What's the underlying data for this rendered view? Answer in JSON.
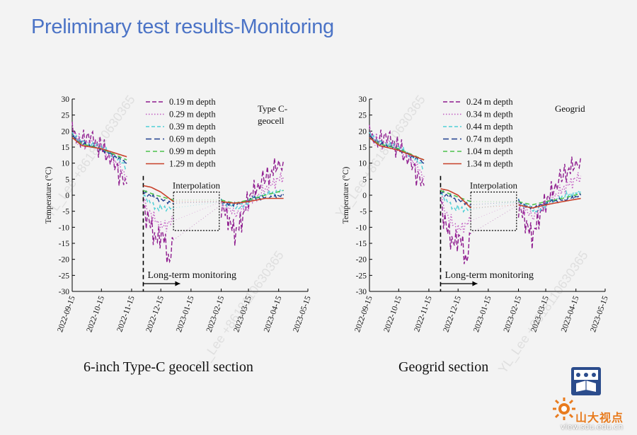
{
  "slide": {
    "title": "Preliminary test results-Monitoring",
    "watermark": "YL_Lee +8618110630365",
    "brand": "山大视点",
    "brand_url": "view.sdu.edu.cn"
  },
  "chart_data": [
    {
      "type": "line",
      "caption": "6-inch Type-C geocell section",
      "annotation": "Type C-\ngeocell",
      "ylabel": "Temperature (°C)",
      "ylim": [
        -30,
        30
      ],
      "yticks": [
        -30,
        -25,
        -20,
        -15,
        -10,
        -5,
        0,
        5,
        10,
        15,
        20,
        25,
        30
      ],
      "xticks": [
        "2022-09-15",
        "2022-10-15",
        "2022-11-15",
        "2022-12-15",
        "2023-01-15",
        "2023-02-15",
        "2023-03-15",
        "2023-04-15",
        "2023-05-15"
      ],
      "xlim": [
        "2022-09-15",
        "2023-05-15"
      ],
      "interpolation_label": "Interpolation",
      "monitoring_label": "Long-term monitoring",
      "monitoring_start": "2022-11-27",
      "interpolation_window": {
        "x": [
          "2022-12-28",
          "2023-02-13"
        ],
        "y": [
          -11,
          1
        ]
      },
      "series": [
        {
          "name": "0.19 m depth",
          "color": "#8e1b8e",
          "dash": "6,3",
          "width": 1.4,
          "amp": 4.5,
          "points": [
            [
              "2022-09-15",
              21
            ],
            [
              "2022-09-22",
              16
            ],
            [
              "2022-09-30",
              19
            ],
            [
              "2022-10-15",
              15
            ],
            [
              "2022-10-30",
              9
            ],
            [
              "2022-11-10",
              3.5
            ],
            null,
            [
              "2022-11-27",
              -4
            ],
            [
              "2022-12-03",
              -8
            ],
            [
              "2022-12-10",
              -14
            ],
            [
              "2022-12-17",
              -12
            ],
            [
              "2022-12-24",
              -21
            ],
            [
              "2022-12-28",
              -14
            ],
            null,
            [
              "2023-02-15",
              -3
            ],
            [
              "2023-02-22",
              -7
            ],
            [
              "2023-03-01",
              -12
            ],
            [
              "2023-03-08",
              -8
            ],
            [
              "2023-03-15",
              -1
            ],
            [
              "2023-03-25",
              3
            ],
            [
              "2023-04-05",
              6
            ],
            [
              "2023-04-15",
              10
            ],
            [
              "2023-04-20",
              11
            ]
          ]
        },
        {
          "name": "0.29 m depth",
          "color": "#c25cc2",
          "dash": "1.5,2.5",
          "width": 1.4,
          "amp": 2.5,
          "points": [
            [
              "2022-09-15",
              20
            ],
            [
              "2022-09-25",
              16.5
            ],
            [
              "2022-10-10",
              16
            ],
            [
              "2022-10-25",
              12
            ],
            [
              "2022-11-10",
              6
            ],
            null,
            [
              "2022-11-27",
              -2
            ],
            [
              "2022-12-05",
              -6
            ],
            [
              "2022-12-15",
              -10
            ],
            [
              "2022-12-28",
              -8
            ],
            null,
            [
              "2023-02-15",
              -2
            ],
            [
              "2023-03-01",
              -6
            ],
            [
              "2023-03-10",
              -4
            ],
            [
              "2023-03-25",
              0
            ],
            [
              "2023-04-10",
              4
            ],
            [
              "2023-04-20",
              6
            ]
          ]
        },
        {
          "name": "0.39 m depth",
          "color": "#4fd0d6",
          "dash": "5,3",
          "width": 1.4,
          "amp": 1.2,
          "points": [
            [
              "2022-09-15",
              19
            ],
            [
              "2022-09-25",
              16.5
            ],
            [
              "2022-10-15",
              15
            ],
            [
              "2022-11-10",
              9
            ],
            null,
            [
              "2022-11-27",
              0
            ],
            [
              "2022-12-10",
              -4
            ],
            [
              "2022-12-28",
              -4
            ],
            null,
            [
              "2023-02-15",
              -2
            ],
            [
              "2023-03-05",
              -4
            ],
            [
              "2023-03-20",
              -1
            ],
            [
              "2023-04-05",
              0.5
            ],
            [
              "2023-04-20",
              1.5
            ]
          ]
        },
        {
          "name": "0.69 m depth",
          "color": "#1f3f8f",
          "dash": "8,4",
          "width": 1.4,
          "amp": 0.8,
          "points": [
            [
              "2022-09-15",
              18.5
            ],
            [
              "2022-09-25",
              16
            ],
            [
              "2022-10-15",
              14.5
            ],
            [
              "2022-11-10",
              10
            ],
            null,
            [
              "2022-11-27",
              1
            ],
            [
              "2022-12-10",
              -1
            ],
            [
              "2022-12-28",
              -2.5
            ],
            null,
            [
              "2023-02-15",
              -2
            ],
            [
              "2023-03-01",
              -3
            ],
            [
              "2023-03-20",
              -1
            ],
            [
              "2023-04-10",
              -0.5
            ],
            [
              "2023-04-20",
              0
            ]
          ]
        },
        {
          "name": "0.99 m depth",
          "color": "#4cc24c",
          "dash": "6,4",
          "width": 1.6,
          "amp": 0,
          "points": [
            [
              "2022-09-15",
              18
            ],
            [
              "2022-09-25",
              16
            ],
            [
              "2022-10-15",
              14.5
            ],
            [
              "2022-11-10",
              11
            ],
            null,
            [
              "2022-11-27",
              1.5
            ],
            [
              "2022-12-10",
              0
            ],
            [
              "2022-12-28",
              -1.5
            ],
            null,
            [
              "2023-02-15",
              -1.5
            ],
            [
              "2023-03-01",
              -2.5
            ],
            [
              "2023-03-15",
              -1.5
            ],
            [
              "2023-04-01",
              0
            ],
            [
              "2023-04-20",
              1.5
            ]
          ]
        },
        {
          "name": "1.29 m depth",
          "color": "#c8402a",
          "dash": "",
          "width": 1.6,
          "amp": 0,
          "points": [
            [
              "2022-09-15",
              18
            ],
            [
              "2022-09-25",
              15.5
            ],
            [
              "2022-10-15",
              14.5
            ],
            [
              "2022-11-10",
              12
            ],
            null,
            [
              "2022-11-27",
              3
            ],
            [
              "2022-12-05",
              2.5
            ],
            [
              "2022-12-15",
              1
            ],
            [
              "2022-12-28",
              -2
            ],
            null,
            [
              "2023-02-15",
              -2
            ],
            [
              "2023-03-01",
              -2.5
            ],
            [
              "2023-03-15",
              -2
            ],
            [
              "2023-04-01",
              -1
            ],
            [
              "2023-04-20",
              -1
            ]
          ]
        }
      ]
    },
    {
      "type": "line",
      "caption": "Geogrid section",
      "annotation": "Geogrid",
      "ylabel": "Temperature (°C)",
      "ylim": [
        -30,
        30
      ],
      "yticks": [
        -30,
        -25,
        -20,
        -15,
        -10,
        -5,
        0,
        5,
        10,
        15,
        20,
        25,
        30
      ],
      "xticks": [
        "2022-09-15",
        "2022-10-15",
        "2022-11-15",
        "2022-12-15",
        "2023-01-15",
        "2023-02-15",
        "2023-03-15",
        "2023-04-15",
        "2023-05-15"
      ],
      "xlim": [
        "2022-09-15",
        "2023-05-15"
      ],
      "interpolation_label": "Interpolation",
      "monitoring_label": "Long-term monitoring",
      "monitoring_start": "2022-11-27",
      "interpolation_window": {
        "x": [
          "2022-12-28",
          "2023-02-13"
        ],
        "y": [
          -11,
          1
        ]
      },
      "series": [
        {
          "name": "0.24 m depth",
          "color": "#8e1b8e",
          "dash": "6,3",
          "width": 1.4,
          "amp": 4.5,
          "points": [
            [
              "2022-09-15",
              20
            ],
            [
              "2022-09-22",
              16
            ],
            [
              "2022-09-30",
              19
            ],
            [
              "2022-10-15",
              15
            ],
            [
              "2022-10-30",
              9
            ],
            [
              "2022-11-10",
              3
            ],
            null,
            [
              "2022-11-27",
              -2
            ],
            [
              "2022-12-03",
              -10
            ],
            [
              "2022-12-10",
              -15
            ],
            [
              "2022-12-17",
              -13
            ],
            [
              "2022-12-24",
              -21
            ],
            [
              "2022-12-28",
              -12
            ],
            null,
            [
              "2023-02-15",
              -3
            ],
            [
              "2023-02-22",
              -8
            ],
            [
              "2023-03-01",
              -13
            ],
            [
              "2023-03-08",
              -7
            ],
            [
              "2023-03-15",
              -2
            ],
            [
              "2023-03-25",
              3
            ],
            [
              "2023-04-05",
              7
            ],
            [
              "2023-04-15",
              10
            ],
            [
              "2023-04-20",
              12
            ]
          ]
        },
        {
          "name": "0.34 m depth",
          "color": "#c25cc2",
          "dash": "1.5,2.5",
          "width": 1.4,
          "amp": 2.5,
          "points": [
            [
              "2022-09-15",
              19.5
            ],
            [
              "2022-09-25",
              16.5
            ],
            [
              "2022-10-10",
              16
            ],
            [
              "2022-10-25",
              12
            ],
            [
              "2022-11-10",
              6
            ],
            null,
            [
              "2022-11-27",
              -1
            ],
            [
              "2022-12-05",
              -7
            ],
            [
              "2022-12-15",
              -11
            ],
            [
              "2022-12-28",
              -8
            ],
            null,
            [
              "2023-02-15",
              -2
            ],
            [
              "2023-03-01",
              -7
            ],
            [
              "2023-03-10",
              -4
            ],
            [
              "2023-03-25",
              0
            ],
            [
              "2023-04-10",
              4
            ],
            [
              "2023-04-20",
              6
            ]
          ]
        },
        {
          "name": "0.44 m depth",
          "color": "#4fd0d6",
          "dash": "5,3",
          "width": 1.4,
          "amp": 1.2,
          "points": [
            [
              "2022-09-15",
              19
            ],
            [
              "2022-09-25",
              16.5
            ],
            [
              "2022-10-15",
              15
            ],
            [
              "2022-11-10",
              9
            ],
            null,
            [
              "2022-11-27",
              0.5
            ],
            [
              "2022-12-10",
              -4
            ],
            [
              "2022-12-28",
              -4.5
            ],
            null,
            [
              "2023-02-15",
              -2
            ],
            [
              "2023-03-05",
              -5
            ],
            [
              "2023-03-20",
              -2
            ],
            [
              "2023-04-05",
              0
            ],
            [
              "2023-04-20",
              1
            ]
          ]
        },
        {
          "name": "0.74 m depth",
          "color": "#1f3f8f",
          "dash": "8,4",
          "width": 1.4,
          "amp": 0.8,
          "points": [
            [
              "2022-09-15",
              18.5
            ],
            [
              "2022-09-25",
              16
            ],
            [
              "2022-10-15",
              14.5
            ],
            [
              "2022-11-10",
              10
            ],
            null,
            [
              "2022-11-27",
              1
            ],
            [
              "2022-12-10",
              -1
            ],
            [
              "2022-12-28",
              -3
            ],
            null,
            [
              "2023-02-15",
              -2
            ],
            [
              "2023-03-01",
              -4
            ],
            [
              "2023-03-20",
              -2
            ],
            [
              "2023-04-10",
              -1
            ],
            [
              "2023-04-20",
              0
            ]
          ]
        },
        {
          "name": "1.04 m depth",
          "color": "#4cc24c",
          "dash": "6,4",
          "width": 1.6,
          "amp": 0,
          "points": [
            [
              "2022-09-15",
              18
            ],
            [
              "2022-09-25",
              16
            ],
            [
              "2022-10-15",
              14.5
            ],
            [
              "2022-11-10",
              11
            ],
            null,
            [
              "2022-11-27",
              1.5
            ],
            [
              "2022-12-10",
              0
            ],
            [
              "2022-12-28",
              -2
            ],
            null,
            [
              "2023-02-15",
              -2
            ],
            [
              "2023-03-01",
              -3
            ],
            [
              "2023-03-15",
              -2
            ],
            [
              "2023-04-01",
              -1
            ],
            [
              "2023-04-20",
              0.5
            ]
          ]
        },
        {
          "name": "1.34 m depth",
          "color": "#c8402a",
          "dash": "",
          "width": 1.6,
          "amp": 0,
          "points": [
            [
              "2022-09-15",
              18
            ],
            [
              "2022-09-25",
              15.5
            ],
            [
              "2022-10-15",
              14
            ],
            [
              "2022-11-10",
              11
            ],
            null,
            [
              "2022-11-27",
              2
            ],
            [
              "2022-12-05",
              1.5
            ],
            [
              "2022-12-15",
              0
            ],
            [
              "2022-12-28",
              -4
            ],
            null,
            [
              "2023-02-15",
              -3
            ],
            [
              "2023-03-01",
              -4
            ],
            [
              "2023-03-15",
              -3
            ],
            [
              "2023-04-01",
              -2
            ],
            [
              "2023-04-20",
              -1
            ]
          ]
        }
      ]
    }
  ]
}
